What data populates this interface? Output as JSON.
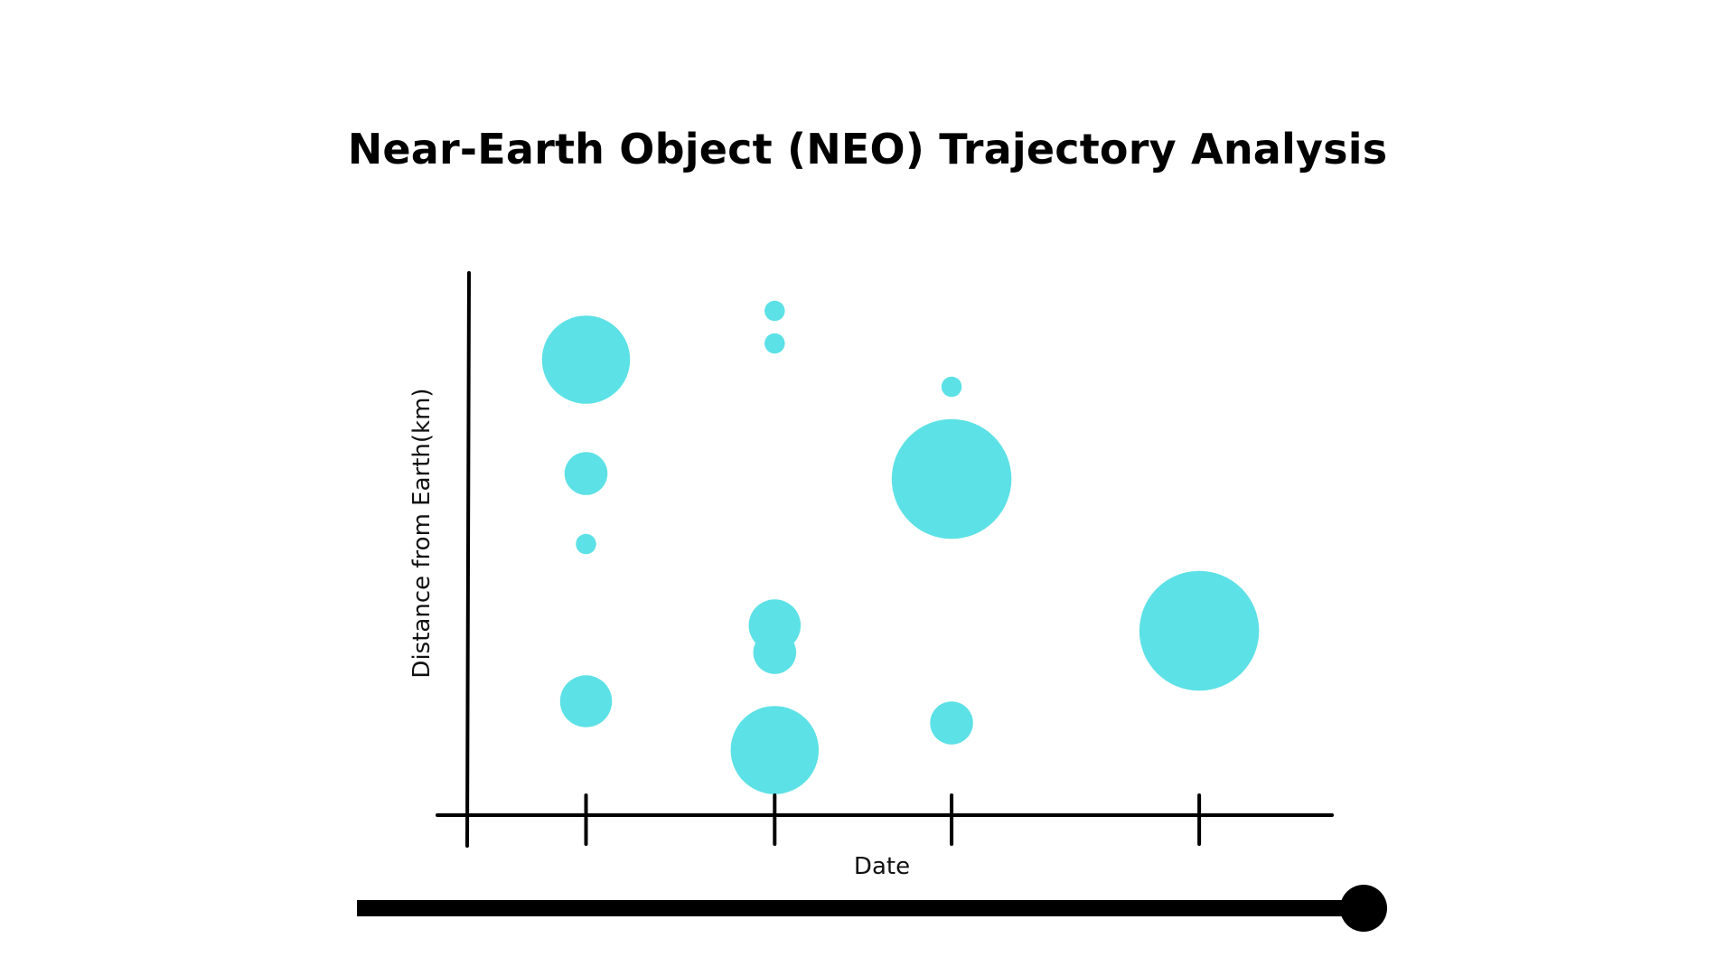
{
  "chart_data": {
    "type": "scatter",
    "title": "Near-Earth Object (NEO) Trajectory Analysis",
    "xlabel": "Date",
    "ylabel": "Distance from Earth(km)",
    "xlim": [
      0,
      7.0
    ],
    "ylim": [
      0,
      10.0
    ],
    "x_ticks": [
      1,
      2.6,
      4.1,
      6.2
    ],
    "x_tick_labels": [],
    "y_ticks": [],
    "grid": false,
    "legend": "none",
    "marker_color": "#5ce1e6",
    "points": [
      {
        "x": 1.0,
        "y": 8.4,
        "size": 39
      },
      {
        "x": 1.0,
        "y": 6.3,
        "size": 19
      },
      {
        "x": 1.0,
        "y": 5.0,
        "size": 9
      },
      {
        "x": 1.0,
        "y": 2.1,
        "size": 23
      },
      {
        "x": 2.6,
        "y": 9.3,
        "size": 9
      },
      {
        "x": 2.6,
        "y": 8.7,
        "size": 9
      },
      {
        "x": 2.6,
        "y": 3.5,
        "size": 23
      },
      {
        "x": 2.6,
        "y": 3.0,
        "size": 19
      },
      {
        "x": 2.6,
        "y": 1.2,
        "size": 39
      },
      {
        "x": 4.1,
        "y": 7.9,
        "size": 9
      },
      {
        "x": 4.1,
        "y": 6.2,
        "size": 53
      },
      {
        "x": 4.1,
        "y": 1.7,
        "size": 19
      },
      {
        "x": 6.2,
        "y": 3.4,
        "size": 53
      }
    ]
  },
  "slider": {
    "value": 1.0
  }
}
